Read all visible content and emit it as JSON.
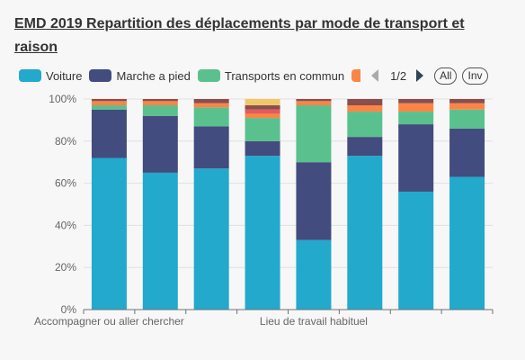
{
  "title": "EMD 2019 Repartition des déplacements par mode de transport et raison",
  "legend": {
    "items": [
      {
        "label": "Voiture",
        "color": "#22a9cc"
      },
      {
        "label": "Marche a pied",
        "color": "#434c7e"
      },
      {
        "label": "Transports en commun",
        "color": "#5ac18e"
      }
    ],
    "clipped_color": "#fb8546",
    "page": "1/2",
    "all_label": "All",
    "inv_label": "Inv"
  },
  "chart_data": {
    "type": "bar",
    "stacked": true,
    "percent": true,
    "title": "EMD 2019 Repartition des déplacements par mode de transport et raison",
    "ylim": [
      0,
      100
    ],
    "y_ticks": [
      "0%",
      "20%",
      "40%",
      "60%",
      "80%",
      "100%"
    ],
    "x_tick_labels": [
      {
        "index": 0,
        "label": "Accompagner ou aller chercher"
      },
      {
        "index": 4,
        "label": "Lieu de travail habituel"
      }
    ],
    "grid": true,
    "legend_position": "top",
    "categories": [
      "",
      "",
      "",
      "",
      "",
      "",
      "",
      ""
    ],
    "series": [
      {
        "name": "Voiture",
        "color": "#22a9cc",
        "values": [
          72,
          65,
          67,
          73,
          33,
          73,
          56,
          63
        ]
      },
      {
        "name": "Marche a pied",
        "color": "#434c7e",
        "values": [
          23,
          27,
          20,
          7,
          37,
          9,
          32,
          23
        ]
      },
      {
        "name": "Transports en commun",
        "color": "#5ac18e",
        "values": [
          2,
          5,
          9,
          11,
          27,
          12,
          6,
          9
        ]
      },
      {
        "color": "#fb8546",
        "values": [
          2,
          2,
          2,
          2,
          2,
          3,
          4,
          3
        ]
      },
      {
        "color": "#e45a5a",
        "values": [
          0,
          0,
          0,
          2,
          0,
          0,
          0,
          0
        ]
      },
      {
        "color": "#8b4e4e",
        "values": [
          1,
          1,
          2,
          2,
          1,
          3,
          2,
          2
        ]
      },
      {
        "color": "#f0c869",
        "values": [
          0,
          0,
          0,
          3,
          0,
          0,
          0,
          0
        ]
      }
    ]
  }
}
